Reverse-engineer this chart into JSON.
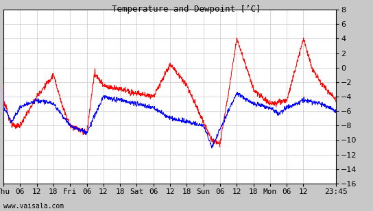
{
  "title": "Temperature and Dewpoint [’C]",
  "ylim": [
    -16,
    8
  ],
  "yticks": [
    -16,
    -14,
    -12,
    -10,
    -8,
    -6,
    -4,
    -2,
    0,
    2,
    4,
    6,
    8
  ],
  "fig_bg_color": "#c8c8c8",
  "plot_bg_color": "#ffffff",
  "grid_color": "#d0d0d0",
  "temp_color": "red",
  "dewpoint_color": "blue",
  "watermark": "www.vaisala.com",
  "xtick_labels": [
    "Thu",
    "06",
    "12",
    "18",
    "Fri",
    "06",
    "12",
    "18",
    "Sat",
    "06",
    "12",
    "18",
    "Sun",
    "06",
    "12",
    "18",
    "Mon",
    "06",
    "12",
    "23:45"
  ],
  "xtick_positions": [
    0,
    6,
    12,
    18,
    24,
    30,
    36,
    42,
    48,
    54,
    60,
    66,
    72,
    78,
    84,
    90,
    96,
    102,
    108,
    119.75
  ],
  "total_hours": 119.75,
  "line_width": 0.7,
  "title_fontsize": 9,
  "tick_fontsize": 8
}
